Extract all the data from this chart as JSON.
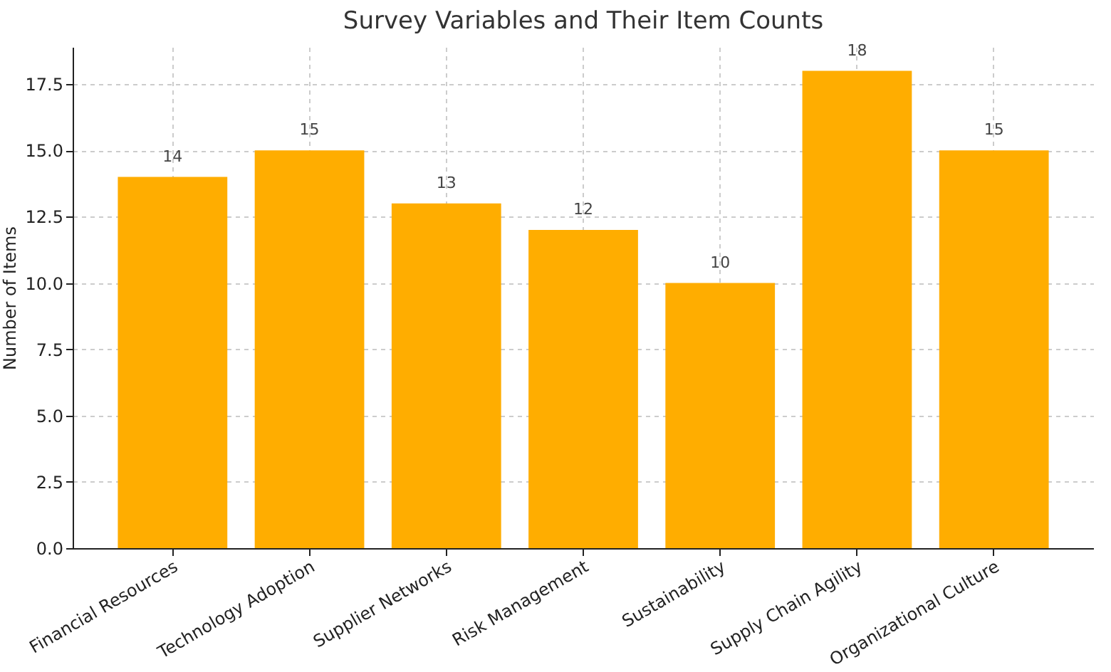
{
  "chart_data": {
    "type": "bar",
    "title": "Survey Variables and Their Item Counts",
    "ylabel": "Number of Items",
    "categories": [
      "Financial Resources",
      "Technology Adoption",
      "Supplier Networks",
      "Risk Management",
      "Sustainability",
      "Supply Chain Agility",
      "Organizational Culture"
    ],
    "values": [
      14,
      15,
      13,
      12,
      10,
      18,
      15
    ],
    "color": "#ffad00",
    "ylim": [
      0,
      18.9
    ],
    "yticks": [
      {
        "value": 0,
        "label": "0.0"
      },
      2.5,
      {
        "value": 5,
        "label": "5.0"
      },
      7.5,
      {
        "value": 10,
        "label": "10.0"
      },
      12.5,
      {
        "value": 15,
        "label": "15.0"
      },
      17.5
    ],
    "grid": true,
    "data_labels": true
  }
}
